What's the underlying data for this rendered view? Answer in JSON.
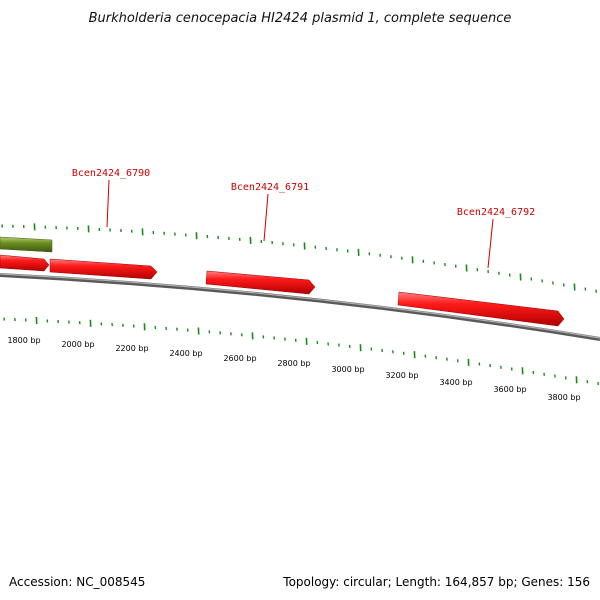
{
  "title": "Burkholderia cenocepacia HI2424 plasmid 1, complete sequence",
  "footer": {
    "accession": "Accession: NC_008545",
    "summary": "Topology: circular; Length: 164,857 bp; Genes: 156"
  },
  "scale": {
    "unit": "bp",
    "labels": [
      "1800 bp",
      "2000 bp",
      "2200 bp",
      "2400 bp",
      "2600 bp",
      "2800 bp",
      "3000 bp",
      "3200 bp",
      "3400 bp",
      "3600 bp",
      "3800 bp"
    ]
  },
  "genes": [
    {
      "id": "Bcen2424_6790",
      "label": "Bcen2424_6790"
    },
    {
      "id": "Bcen2424_6791",
      "label": "Bcen2424_6791"
    },
    {
      "id": "Bcen2424_6792",
      "label": "Bcen2424_6792"
    }
  ],
  "colors": {
    "gene": "#ff0000",
    "gene_dark": "#b00000",
    "gene_highlight": "#ff7070",
    "feature_green": "#6b8e23",
    "feature_green_light": "#a4c060",
    "backbone": "#7a7a7a",
    "ticks": "#1a8a1a",
    "label_red": "#cc0000"
  }
}
